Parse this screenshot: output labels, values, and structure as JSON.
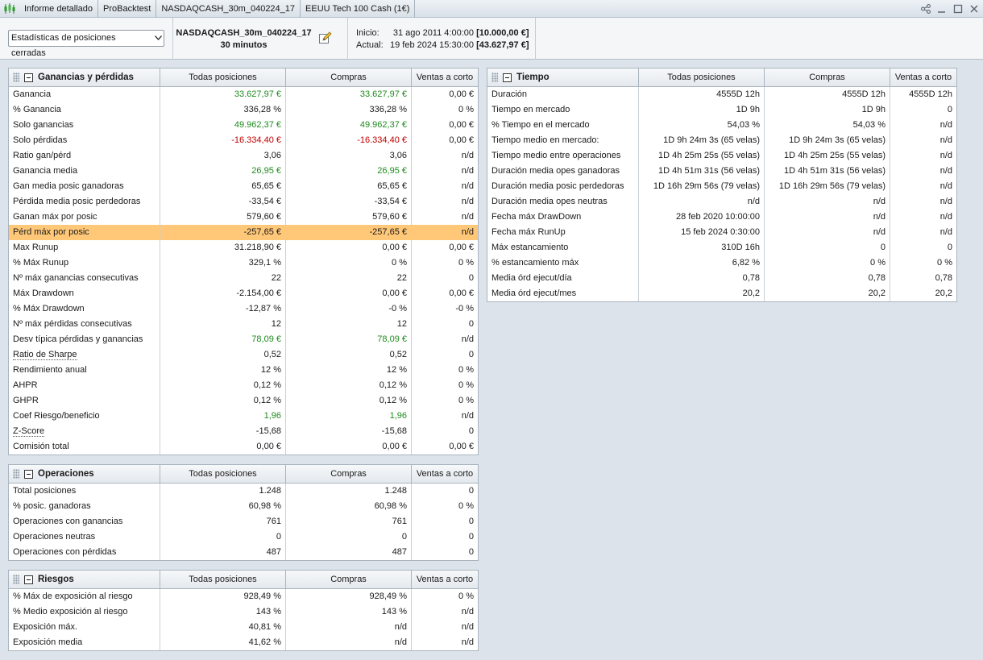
{
  "titlebar": {
    "tabs": [
      "Informe detallado",
      "ProBacktest",
      "NASDAQCASH_30m_040224_17",
      "EEUU Tech 100 Cash (1€)"
    ]
  },
  "toolbar": {
    "select_value": "Estadísticas de posiciones cerradas",
    "system_name": "NASDAQCASH_30m_040224_17",
    "timeframe": "30 minutos",
    "inicio_label": "Inicio:",
    "inicio_date": "31 ago 2011 4:00:00",
    "inicio_capital": "[10.000,00 €]",
    "actual_label": "Actual:",
    "actual_date": "19 feb 2024 15:30:00",
    "actual_capital": "[43.627,97 €]"
  },
  "columns": [
    "Todas posiciones",
    "Compras",
    "Ventas a corto"
  ],
  "ganancias": {
    "title": "Ganancias y pérdidas",
    "rows": [
      {
        "label": "Ganancia",
        "all": "33.627,97 €",
        "buy": "33.627,97 €",
        "short": "0,00 €",
        "color": "green"
      },
      {
        "label": "% Ganancia",
        "all": "336,28 %",
        "buy": "336,28 %",
        "short": "0 %"
      },
      {
        "label": "Solo ganancias",
        "all": "49.962,37 €",
        "buy": "49.962,37 €",
        "short": "0,00 €",
        "color": "green"
      },
      {
        "label": "Solo pérdidas",
        "all": "-16.334,40 €",
        "buy": "-16.334,40 €",
        "short": "0,00 €",
        "color": "red"
      },
      {
        "label": "Ratio gan/pérd",
        "all": "3,06",
        "buy": "3,06",
        "short": "n/d"
      },
      {
        "label": "Ganancia media",
        "all": "26,95 €",
        "buy": "26,95 €",
        "short": "n/d",
        "color": "green"
      },
      {
        "label": "Gan media posic ganadoras",
        "all": "65,65 €",
        "buy": "65,65 €",
        "short": "n/d"
      },
      {
        "label": "Pérdida media posic perdedoras",
        "all": "-33,54 €",
        "buy": "-33,54 €",
        "short": "n/d"
      },
      {
        "label": "Ganan máx por posic",
        "all": "579,60 €",
        "buy": "579,60 €",
        "short": "n/d"
      },
      {
        "label": "Pérd máx por posic",
        "all": "-257,65 €",
        "buy": "-257,65 €",
        "short": "n/d",
        "highlight": true
      },
      {
        "label": "Max Runup",
        "all": "31.218,90 €",
        "buy": "0,00 €",
        "short": "0,00 €"
      },
      {
        "label": "% Máx Runup",
        "all": "329,1 %",
        "buy": "0 %",
        "short": "0 %"
      },
      {
        "label": "Nº máx ganancias consecutivas",
        "all": "22",
        "buy": "22",
        "short": "0"
      },
      {
        "label": "Máx Drawdown",
        "all": "-2.154,00 €",
        "buy": "0,00 €",
        "short": "0,00 €"
      },
      {
        "label": "% Máx Drawdown",
        "all": "-12,87 %",
        "buy": "-0 %",
        "short": "-0 %"
      },
      {
        "label": "Nº máx pérdidas consecutivas",
        "all": "12",
        "buy": "12",
        "short": "0"
      },
      {
        "label": "Desv típica pérdidas y ganancias",
        "all": "78,09 €",
        "buy": "78,09 €",
        "short": "n/d",
        "color": "green"
      },
      {
        "label": "Ratio de Sharpe",
        "all": "0,52",
        "buy": "0,52",
        "short": "0",
        "dotted": true
      },
      {
        "label": "Rendimiento anual",
        "all": "12 %",
        "buy": "12 %",
        "short": "0 %"
      },
      {
        "label": "AHPR",
        "all": "0,12 %",
        "buy": "0,12 %",
        "short": "0 %"
      },
      {
        "label": "GHPR",
        "all": "0,12 %",
        "buy": "0,12 %",
        "short": "0 %"
      },
      {
        "label": "Coef Riesgo/beneficio",
        "all": "1,96",
        "buy": "1,96",
        "short": "n/d",
        "color": "green"
      },
      {
        "label": "Z-Score",
        "all": "-15,68",
        "buy": "-15,68",
        "short": "0",
        "dotted": true
      },
      {
        "label": "Comisión total",
        "all": "0,00 €",
        "buy": "0,00 €",
        "short": "0,00 €"
      }
    ]
  },
  "operaciones": {
    "title": "Operaciones",
    "rows": [
      {
        "label": "Total posiciones",
        "all": "1.248",
        "buy": "1.248",
        "short": "0"
      },
      {
        "label": "% posic. ganadoras",
        "all": "60,98 %",
        "buy": "60,98 %",
        "short": "0 %"
      },
      {
        "label": "Operaciones con ganancias",
        "all": "761",
        "buy": "761",
        "short": "0"
      },
      {
        "label": "Operaciones neutras",
        "all": "0",
        "buy": "0",
        "short": "0"
      },
      {
        "label": "Operaciones con pérdidas",
        "all": "487",
        "buy": "487",
        "short": "0"
      }
    ]
  },
  "riesgos": {
    "title": "Riesgos",
    "rows": [
      {
        "label": "% Máx de exposición al riesgo",
        "all": "928,49 %",
        "buy": "928,49 %",
        "short": "0 %"
      },
      {
        "label": "% Medio exposición al riesgo",
        "all": "143 %",
        "buy": "143 %",
        "short": "n/d"
      },
      {
        "label": "Exposición máx.",
        "all": "40,81 %",
        "buy": "n/d",
        "short": "n/d"
      },
      {
        "label": "Exposición media",
        "all": "41,62 %",
        "buy": "n/d",
        "short": "n/d"
      }
    ]
  },
  "tiempo": {
    "title": "Tiempo",
    "rows": [
      {
        "label": "Duración",
        "all": "4555D 12h",
        "buy": "4555D 12h",
        "short": "4555D 12h"
      },
      {
        "label": "Tiempo en mercado",
        "all": "1D 9h",
        "buy": "1D 9h",
        "short": "0"
      },
      {
        "label": "% Tiempo en el mercado",
        "all": "54,03 %",
        "buy": "54,03 %",
        "short": "n/d"
      },
      {
        "label": "Tiempo medio en mercado:",
        "all": "1D 9h 24m 3s (65 velas)",
        "buy": "1D 9h 24m 3s (65 velas)",
        "short": "n/d"
      },
      {
        "label": "Tiempo medio entre operaciones",
        "all": "1D 4h 25m 25s (55 velas)",
        "buy": "1D 4h 25m 25s (55 velas)",
        "short": "n/d"
      },
      {
        "label": "Duración media opes ganadoras",
        "all": "1D 4h 51m 31s (56 velas)",
        "buy": "1D 4h 51m 31s (56 velas)",
        "short": "n/d"
      },
      {
        "label": "Duración media posic perdedoras",
        "all": "1D 16h 29m 56s (79 velas)",
        "buy": "1D 16h 29m 56s (79 velas)",
        "short": "n/d"
      },
      {
        "label": "Duración media opes neutras",
        "all": "n/d",
        "buy": "n/d",
        "short": "n/d"
      },
      {
        "label": "Fecha máx DrawDown",
        "all": "28 feb 2020 10:00:00",
        "buy": "n/d",
        "short": "n/d"
      },
      {
        "label": "Fecha máx RunUp",
        "all": "15 feb 2024 0:30:00",
        "buy": "n/d",
        "short": "n/d"
      },
      {
        "label": "Máx estancamiento",
        "all": "310D 16h",
        "buy": "0",
        "short": "0"
      },
      {
        "label": "% estancamiento máx",
        "all": "6,82 %",
        "buy": "0 %",
        "short": "0 %"
      },
      {
        "label": "Media órd ejecut/día",
        "all": "0,78",
        "buy": "0,78",
        "short": "0,78"
      },
      {
        "label": "Media órd ejecut/mes",
        "all": "20,2",
        "buy": "20,2",
        "short": "20,2"
      }
    ]
  }
}
